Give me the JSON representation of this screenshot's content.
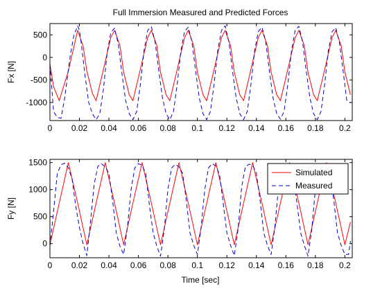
{
  "figure": {
    "title": "Full Immersion Measured and Predicted Forces",
    "xlabel": "Time [sec]"
  },
  "chart_data": [
    {
      "type": "line",
      "name": "top",
      "ylabel": "Fx [N]",
      "xlim": [
        0,
        0.205
      ],
      "ylim": [
        -1400,
        750
      ],
      "xticks": [
        0,
        0.02,
        0.04,
        0.06,
        0.08,
        0.1,
        0.12,
        0.14,
        0.16,
        0.18,
        0.2
      ],
      "xtick_labels": [
        "0",
        "0.02",
        "0.04",
        "0.06",
        "0.08",
        "0.1",
        "0.12",
        "0.14",
        "0.16",
        "0.18",
        "0.2"
      ],
      "yticks": [
        -1000,
        -500,
        0,
        500
      ],
      "ytick_labels": [
        "-1000",
        "-500",
        "0",
        "500"
      ],
      "grid": false,
      "series": [
        {
          "key": "simulated",
          "style": "solid",
          "color": "#ff0000",
          "x": [
            0,
            0.0025,
            0.0063,
            0.0125,
            0.0188,
            0.0225,
            0.025,
            0.0288,
            0.0313,
            0.035,
            0.0413,
            0.0438,
            0.0475,
            0.05,
            0.0538,
            0.0563,
            0.06,
            0.0663,
            0.0688,
            0.0725,
            0.075,
            0.0788,
            0.0813,
            0.085,
            0.0913,
            0.0938,
            0.0975,
            0.1,
            0.1038,
            0.1063,
            0.11,
            0.1163,
            0.1188,
            0.1225,
            0.125,
            0.1288,
            0.1313,
            0.135,
            0.1413,
            0.1438,
            0.1475,
            0.15,
            0.1538,
            0.1563,
            0.16,
            0.1663,
            0.1688,
            0.1725,
            0.175,
            0.1788,
            0.1813,
            0.185,
            0.1913,
            0.1938,
            0.1975,
            0.2,
            0.2038
          ],
          "y": [
            -150,
            -650,
            -960,
            -300,
            600,
            250,
            -300,
            -800,
            -960,
            -450,
            440,
            600,
            260,
            -330,
            -830,
            -960,
            -450,
            440,
            600,
            260,
            -330,
            -830,
            -960,
            -450,
            440,
            600,
            260,
            -330,
            -830,
            -960,
            -450,
            440,
            600,
            260,
            -330,
            -830,
            -960,
            -450,
            440,
            600,
            260,
            -330,
            -830,
            -960,
            -450,
            440,
            600,
            260,
            -330,
            -830,
            -960,
            -450,
            440,
            600,
            260,
            -330,
            -830
          ]
        },
        {
          "key": "measured",
          "style": "dashed",
          "color": "#0000cc",
          "x": [
            0,
            0.0025,
            0.005,
            0.0075,
            0.01,
            0.0138,
            0.0163,
            0.0188,
            0.02,
            0.0213,
            0.0238,
            0.0263,
            0.0288,
            0.0313,
            0.0338,
            0.0363,
            0.0388,
            0.0413,
            0.0438,
            0.0463,
            0.0488,
            0.0513,
            0.0538,
            0.0563,
            0.0588,
            0.0613,
            0.0638,
            0.0663,
            0.0688,
            0.0713,
            0.0738,
            0.0763,
            0.0788,
            0.0813,
            0.0838,
            0.0863,
            0.0888,
            0.0913,
            0.0938,
            0.0963,
            0.0988,
            0.1013,
            0.1038,
            0.1063,
            0.1088,
            0.1113,
            0.1138,
            0.1163,
            0.1188,
            0.1213,
            0.1238,
            0.1263,
            0.1288,
            0.1313,
            0.1338,
            0.1363,
            0.1388,
            0.1413,
            0.1438,
            0.1463,
            0.1488,
            0.1513,
            0.1538,
            0.1563,
            0.1588,
            0.1613,
            0.1638,
            0.1663,
            0.1688,
            0.1713,
            0.1738,
            0.1763,
            0.1788,
            0.1813,
            0.1838,
            0.1863,
            0.1888,
            0.1913,
            0.1938,
            0.1963,
            0.1988,
            0.2013,
            0.2038
          ],
          "y": [
            -150,
            -1200,
            -1330,
            -1350,
            -900,
            50,
            500,
            700,
            600,
            300,
            -400,
            -1000,
            -1250,
            -1380,
            -1250,
            -700,
            100,
            550,
            650,
            300,
            -350,
            -950,
            -1250,
            -1380,
            -1200,
            -600,
            150,
            600,
            680,
            350,
            -300,
            -900,
            -1250,
            -1380,
            -1200,
            -600,
            150,
            580,
            670,
            350,
            -300,
            -900,
            -1250,
            -1380,
            -1200,
            -600,
            150,
            600,
            700,
            350,
            -300,
            -900,
            -1250,
            -1380,
            -1200,
            -600,
            150,
            570,
            670,
            350,
            -300,
            -900,
            -1250,
            -1370,
            -1200,
            -600,
            150,
            600,
            690,
            350,
            -300,
            -900,
            -1250,
            -1380,
            -1200,
            -600,
            150,
            570,
            660,
            330,
            -300,
            -950,
            -1000
          ]
        }
      ]
    },
    {
      "type": "line",
      "name": "bottom",
      "ylabel": "Fy [N]",
      "xlim": [
        0,
        0.205
      ],
      "ylim": [
        -260,
        1560
      ],
      "xticks": [
        0,
        0.02,
        0.04,
        0.06,
        0.08,
        0.1,
        0.12,
        0.14,
        0.16,
        0.18,
        0.2
      ],
      "xtick_labels": [
        "0",
        "0.02",
        "0.04",
        "0.06",
        "0.08",
        "0.1",
        "0.12",
        "0.14",
        "0.16",
        "0.18",
        "0.2"
      ],
      "yticks": [
        0,
        500,
        1000,
        1500
      ],
      "ytick_labels": [
        "0",
        "500",
        "1000",
        "1500"
      ],
      "grid": false,
      "legend": {
        "placement": "top-right",
        "entries": [
          "Simulated",
          "Measured"
        ]
      },
      "series": [
        {
          "key": "simulated",
          "style": "solid",
          "color": "#ff0000",
          "x": [
            0,
            0.0063,
            0.0125,
            0.0188,
            0.025,
            0.0313,
            0.0375,
            0.0438,
            0.05,
            0.0563,
            0.0625,
            0.0688,
            0.075,
            0.0813,
            0.0875,
            0.0938,
            0.1,
            0.1063,
            0.1125,
            0.1188,
            0.125,
            0.1313,
            0.1375,
            0.1438,
            0.15,
            0.1563,
            0.1625,
            0.1688,
            0.175,
            0.1813,
            0.1875,
            0.1938,
            0.2,
            0.2038
          ],
          "y": [
            -20,
            750,
            1500,
            750,
            -20,
            750,
            1500,
            750,
            -20,
            750,
            1500,
            750,
            -20,
            750,
            1500,
            750,
            -20,
            750,
            1500,
            750,
            -20,
            750,
            1500,
            750,
            -20,
            750,
            1500,
            750,
            -20,
            750,
            1500,
            750,
            -20,
            400
          ]
        },
        {
          "key": "measured",
          "style": "dashed",
          "color": "#0000cc",
          "x": [
            0,
            0.0025,
            0.005,
            0.0075,
            0.01,
            0.0125,
            0.015,
            0.0175,
            0.02,
            0.0225,
            0.025,
            0.0275,
            0.03,
            0.0325,
            0.035,
            0.0375,
            0.04,
            0.0425,
            0.045,
            0.0475,
            0.05,
            0.0525,
            0.055,
            0.0575,
            0.06,
            0.0625,
            0.065,
            0.0675,
            0.07,
            0.0725,
            0.075,
            0.0775,
            0.08,
            0.0825,
            0.085,
            0.0875,
            0.09,
            0.0925,
            0.095,
            0.0975,
            0.1,
            0.1025,
            0.105,
            0.1075,
            0.11,
            0.1125,
            0.115,
            0.1175,
            0.12,
            0.1225,
            0.125,
            0.1275,
            0.13,
            0.1325,
            0.135,
            0.1375,
            0.14,
            0.1425,
            0.145,
            0.1475,
            0.15,
            0.1525,
            0.155,
            0.1575,
            0.16,
            0.1625,
            0.165,
            0.1675,
            0.17,
            0.1725,
            0.175,
            0.1775,
            0.18,
            0.1825,
            0.185,
            0.1875,
            0.19,
            0.1925,
            0.195,
            0.1975,
            0.2,
            0.2025,
            0.2038
          ],
          "y": [
            -50,
            600,
            1300,
            1460,
            1490,
            1400,
            1200,
            700,
            300,
            0,
            -220,
            400,
            1100,
            1430,
            1480,
            1420,
            1300,
            800,
            200,
            -50,
            -200,
            300,
            1000,
            1400,
            1480,
            1450,
            1300,
            700,
            200,
            -50,
            -230,
            250,
            1000,
            1400,
            1470,
            1420,
            1300,
            800,
            200,
            -30,
            -200,
            300,
            1000,
            1400,
            1480,
            1440,
            1280,
            750,
            200,
            -30,
            -220,
            250,
            1050,
            1420,
            1470,
            1450,
            1300,
            800,
            200,
            -30,
            -200,
            300,
            1050,
            1400,
            1480,
            1430,
            1280,
            750,
            200,
            -30,
            -230,
            250,
            1000,
            1400,
            1470,
            1430,
            1300,
            800,
            200,
            -30,
            -200,
            -200,
            50
          ]
        }
      ]
    }
  ]
}
